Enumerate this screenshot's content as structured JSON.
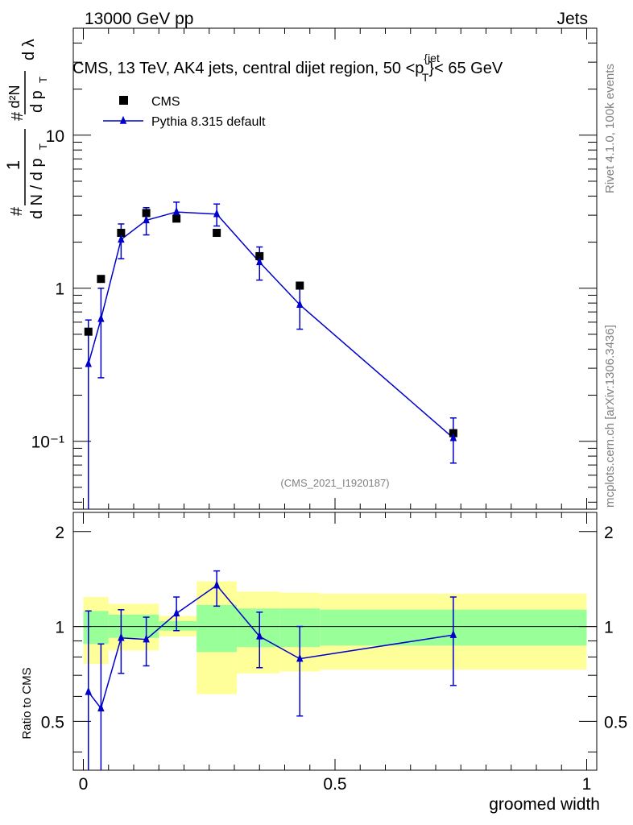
{
  "header": {
    "left": "13000 GeV pp",
    "right": "Jets"
  },
  "side_labels": {
    "rivet": "Rivet 4.1.0,  100k events",
    "mcplots": "mcplots.cern.ch [arXiv:1306.3436]"
  },
  "chart_data": {
    "type": "scatter",
    "title": "CMS, 13 TeV, AK4 jets, central dijet region, 50 <p_T^{jet}< 65 GeV",
    "title_parts": {
      "pre": "CMS, 13 TeV, AK4 jets, central dijet region, 50 <p",
      "sub": "T",
      "sup": "{jet",
      "post": "}< 65 GeV"
    },
    "watermark": "(CMS_2021_I1920187)",
    "xlabel": "groomed width",
    "ylabel_main": "1/dN/dp_T d²N/dp_T dλ",
    "ylabel_main_parts": {
      "num_left": "1",
      "den_left": "d N / d p",
      "num_right": "d²N",
      "den_right": "d p",
      "lambda": "d λ",
      "sub_T": "T",
      "hash": "#"
    },
    "ylabel_ratio": "Ratio to CMS",
    "xlim": [
      -0.02,
      1.02
    ],
    "ylim_main": [
      0.036,
      50
    ],
    "yscale_main": "log",
    "ylim_ratio": [
      0.35,
      2.3
    ],
    "yscale_ratio": "log",
    "x_ticks": [
      0,
      0.5,
      1
    ],
    "x_tick_labels": [
      "0",
      "0.5",
      "1"
    ],
    "y_ticks_main": [
      0.1,
      1,
      10
    ],
    "y_tick_labels_main": [
      "10⁻¹",
      "1",
      "10"
    ],
    "y_ticks_ratio": [
      0.5,
      1,
      2
    ],
    "y_tick_labels_ratio": [
      "0.5",
      "1",
      "2"
    ],
    "series": [
      {
        "name": "CMS",
        "marker": "square",
        "color": "#000000",
        "x": [
          0.01,
          0.035,
          0.075,
          0.125,
          0.185,
          0.265,
          0.35,
          0.43,
          0.735
        ],
        "y": [
          0.52,
          1.15,
          2.3,
          3.1,
          2.85,
          2.3,
          1.62,
          1.04,
          0.113
        ],
        "bins": [
          [
            0,
            0.02
          ],
          [
            0.02,
            0.05
          ],
          [
            0.05,
            0.1
          ],
          [
            0.1,
            0.15
          ],
          [
            0.15,
            0.225
          ],
          [
            0.225,
            0.305
          ],
          [
            0.305,
            0.39
          ],
          [
            0.39,
            0.47
          ],
          [
            0.47,
            1.0
          ]
        ]
      },
      {
        "name": "Pythia 8.315 default",
        "marker": "triangle",
        "color": "#0000cc",
        "x": [
          0.01,
          0.035,
          0.075,
          0.125,
          0.185,
          0.265,
          0.35,
          0.43,
          0.735
        ],
        "y": [
          0.32,
          0.63,
          2.08,
          2.78,
          3.15,
          3.05,
          1.48,
          0.78,
          0.105
        ],
        "err_low": [
          0.32,
          0.37,
          0.52,
          0.55,
          0.4,
          0.5,
          0.35,
          0.24,
          0.033
        ],
        "err_high": [
          0.3,
          0.37,
          0.55,
          0.58,
          0.5,
          0.5,
          0.38,
          0.26,
          0.037
        ]
      }
    ],
    "ratio": {
      "pythia": [
        0.62,
        0.55,
        0.92,
        0.91,
        1.1,
        1.35,
        0.93,
        0.79,
        0.94
      ],
      "err_low": [
        0.27,
        0.25,
        0.21,
        0.16,
        0.13,
        0.19,
        0.19,
        0.27,
        0.29
      ],
      "err_high": [
        0.5,
        0.33,
        0.21,
        0.16,
        0.14,
        0.15,
        0.18,
        0.21,
        0.3
      ],
      "band_inner": [
        [
          0.88,
          1.12
        ],
        [
          0.88,
          1.12
        ],
        [
          0.92,
          1.09
        ],
        [
          0.92,
          1.09
        ],
        [
          0.97,
          1.04
        ],
        [
          0.83,
          1.17
        ],
        [
          0.86,
          1.14
        ],
        [
          0.86,
          1.14
        ],
        [
          0.87,
          1.13
        ]
      ],
      "band_outer": [
        [
          0.76,
          1.24
        ],
        [
          0.76,
          1.24
        ],
        [
          0.84,
          1.18
        ],
        [
          0.84,
          1.18
        ],
        [
          0.93,
          1.08
        ],
        [
          0.61,
          1.39
        ],
        [
          0.71,
          1.29
        ],
        [
          0.72,
          1.28
        ],
        [
          0.73,
          1.27
        ]
      ]
    },
    "colors": {
      "band_inner": "#99ff99",
      "band_outer": "#ffff99",
      "data": "#000000",
      "mc": "#0000cc",
      "watermark": "#808080"
    }
  }
}
